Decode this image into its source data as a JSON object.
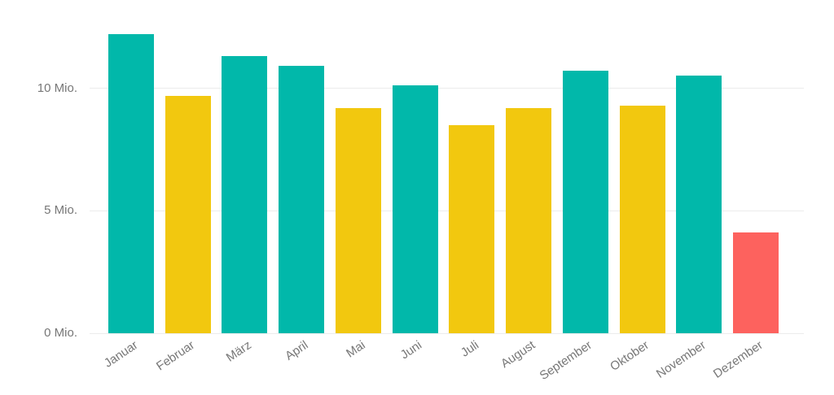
{
  "chart_data": {
    "type": "bar",
    "title": "",
    "xlabel": "",
    "ylabel": "",
    "unit": "Mio.",
    "categories": [
      "Januar",
      "Februar",
      "März",
      "April",
      "Mai",
      "Juni",
      "Juli",
      "August",
      "September",
      "Oktober",
      "November",
      "Dezember"
    ],
    "values": [
      12.2,
      9.7,
      11.3,
      10.9,
      9.2,
      10.1,
      8.5,
      9.2,
      10.7,
      9.3,
      10.5,
      4.1
    ],
    "bar_colors": [
      "#01B8AA",
      "#F2C80F",
      "#01B8AA",
      "#01B8AA",
      "#F2C80F",
      "#01B8AA",
      "#F2C80F",
      "#F2C80F",
      "#01B8AA",
      "#F2C80F",
      "#01B8AA",
      "#FD625E"
    ],
    "palette": {
      "teal": "#01B8AA",
      "yellow": "#F2C80F",
      "red": "#FD625E"
    },
    "ylim": [
      0,
      13
    ],
    "yticks": [
      {
        "value": 0,
        "label": "0 Mio."
      },
      {
        "value": 5,
        "label": "5 Mio."
      },
      {
        "value": 10,
        "label": "10 Mio."
      }
    ],
    "grid": "horizontal",
    "legend": "none",
    "axis_label_color": "#777777",
    "gridline_color": "#ececec"
  }
}
